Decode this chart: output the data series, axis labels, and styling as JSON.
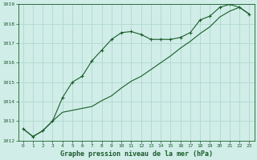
{
  "title": "Graphe pression niveau de la mer (hPa)",
  "background_color": "#d0ede8",
  "grid_color": "#b0d8d0",
  "line_color": "#1a5c28",
  "marker_color": "#1a5c28",
  "xlim": [
    -0.5,
    23.5
  ],
  "ylim": [
    1012,
    1019
  ],
  "yticks": [
    1012,
    1013,
    1014,
    1015,
    1016,
    1017,
    1018,
    1019
  ],
  "xticks": [
    0,
    1,
    2,
    3,
    4,
    5,
    6,
    7,
    8,
    9,
    10,
    11,
    12,
    13,
    14,
    15,
    16,
    17,
    18,
    19,
    20,
    21,
    22,
    23
  ],
  "series1_x": [
    0,
    1,
    2,
    3,
    4,
    5,
    6,
    7,
    8,
    9,
    10,
    11,
    12,
    13,
    14,
    15,
    16,
    17,
    18,
    19,
    20,
    21,
    22,
    23
  ],
  "series1_y": [
    1012.6,
    1012.2,
    1012.5,
    1013.0,
    1013.45,
    1013.55,
    1013.65,
    1013.75,
    1014.05,
    1014.3,
    1014.7,
    1015.05,
    1015.3,
    1015.65,
    1016.0,
    1016.35,
    1016.75,
    1017.1,
    1017.5,
    1017.85,
    1018.35,
    1018.65,
    1018.85,
    1018.5
  ],
  "series2_x": [
    0,
    1,
    2,
    3,
    4,
    5,
    6,
    7,
    8,
    9,
    10,
    11,
    12,
    13,
    14,
    15,
    16,
    17,
    18,
    19,
    20,
    21,
    22,
    23
  ],
  "series2_y": [
    1012.6,
    1012.2,
    1012.5,
    1013.0,
    1014.2,
    1015.0,
    1015.3,
    1016.1,
    1016.65,
    1017.2,
    1017.55,
    1017.6,
    1017.45,
    1017.2,
    1017.2,
    1017.2,
    1017.3,
    1017.55,
    1018.2,
    1018.4,
    1018.85,
    1019.0,
    1018.85,
    1018.5
  ],
  "ylabel_fontsize": 4.5,
  "xlabel_fontsize": 4.5,
  "title_fontsize": 6.0
}
